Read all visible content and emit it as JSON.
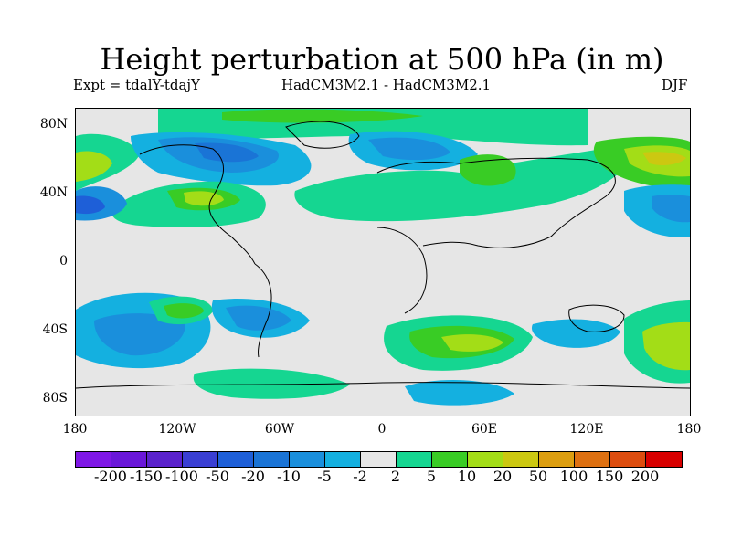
{
  "title": "Height perturbation at 500 hPa (in m)",
  "subtitle_left": "Expt = tdalY-tdajY",
  "subtitle_center": "HadCM3M2.1 - HadCM3M2.1",
  "subtitle_right": "DJF",
  "y_ticks": [
    "80N",
    "40N",
    "0",
    "40S",
    "80S"
  ],
  "x_ticks": [
    "180",
    "120W",
    "60W",
    "0",
    "60E",
    "120E",
    "180"
  ],
  "colorbar": {
    "colors": [
      "#7f17e6",
      "#6a17d9",
      "#5a22cc",
      "#3a3fd3",
      "#1e5fd8",
      "#1a74d6",
      "#1a8fdc",
      "#14b0e0",
      "#e6e6e6",
      "#15d691",
      "#39cc25",
      "#a3dd17",
      "#ccc811",
      "#dc9e10",
      "#dd7011",
      "#dd4d0f",
      "#d80000"
    ],
    "labels": [
      "-200",
      "-150",
      "-100",
      "-50",
      "-20",
      "-10",
      "-5",
      "-2",
      "2",
      "5",
      "10",
      "20",
      "50",
      "100",
      "150",
      "200"
    ]
  }
}
